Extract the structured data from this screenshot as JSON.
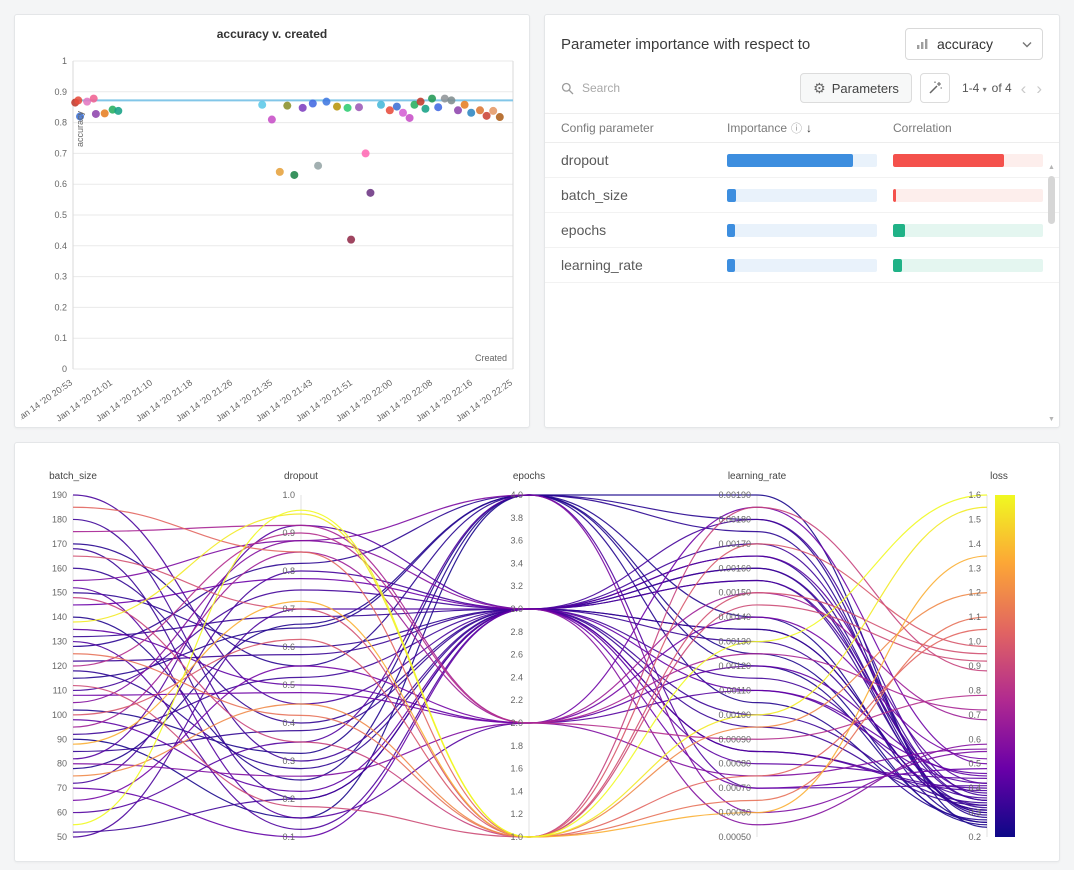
{
  "scatter_panel": {
    "title": "accuracy v. created",
    "x_axis_label": "Created",
    "y_axis_label": "accuracy",
    "chart_data": {
      "type": "scatter",
      "xlabel": "Created",
      "ylabel": "accuracy",
      "ylim": [
        0,
        1
      ],
      "y_ticks": [
        "0",
        "0.1",
        "0.2",
        "0.3",
        "0.4",
        "0.5",
        "0.6",
        "0.7",
        "0.8",
        "0.9",
        "1"
      ],
      "x_tick_labels": [
        "Jan 14 '20 20:53",
        "Jan 14 '20 21:01",
        "Jan 14 '20 21:10",
        "Jan 14 '20 21:18",
        "Jan 14 '20 21:26",
        "Jan 14 '20 21:35",
        "Jan 14 '20 21:43",
        "Jan 14 '20 21:51",
        "Jan 14 '20 22:00",
        "Jan 14 '20 22:08",
        "Jan 14 '20 22:16",
        "Jan 14 '20 22:25"
      ],
      "reference_line_y": 0.872,
      "reference_line_color": "#82c6e8",
      "points": [
        {
          "t": 0.005,
          "y": 0.865,
          "color": "#c0392b"
        },
        {
          "t": 0.012,
          "y": 0.872,
          "color": "#e74c3c"
        },
        {
          "t": 0.016,
          "y": 0.82,
          "color": "#3b6fd4"
        },
        {
          "t": 0.032,
          "y": 0.868,
          "color": "#e377c2"
        },
        {
          "t": 0.047,
          "y": 0.878,
          "color": "#f06292"
        },
        {
          "t": 0.052,
          "y": 0.828,
          "color": "#8e44ad"
        },
        {
          "t": 0.072,
          "y": 0.83,
          "color": "#e67e22"
        },
        {
          "t": 0.09,
          "y": 0.842,
          "color": "#27ae60"
        },
        {
          "t": 0.103,
          "y": 0.838,
          "color": "#16a085"
        },
        {
          "t": 0.43,
          "y": 0.858,
          "color": "#5bc8e8"
        },
        {
          "t": 0.452,
          "y": 0.81,
          "color": "#c74fc7"
        },
        {
          "t": 0.47,
          "y": 0.64,
          "color": "#e6a23c"
        },
        {
          "t": 0.487,
          "y": 0.855,
          "color": "#8a8f2a"
        },
        {
          "t": 0.503,
          "y": 0.63,
          "color": "#1e8449"
        },
        {
          "t": 0.522,
          "y": 0.848,
          "color": "#7d3fbf"
        },
        {
          "t": 0.545,
          "y": 0.862,
          "color": "#4169e1"
        },
        {
          "t": 0.557,
          "y": 0.66,
          "color": "#95a5a6"
        },
        {
          "t": 0.576,
          "y": 0.868,
          "color": "#3f78e0"
        },
        {
          "t": 0.6,
          "y": 0.852,
          "color": "#b7950b"
        },
        {
          "t": 0.624,
          "y": 0.848,
          "color": "#2ecc71"
        },
        {
          "t": 0.632,
          "y": 0.42,
          "color": "#922b4a"
        },
        {
          "t": 0.65,
          "y": 0.85,
          "color": "#9b59b6"
        },
        {
          "t": 0.665,
          "y": 0.7,
          "color": "#ff69b4"
        },
        {
          "t": 0.676,
          "y": 0.572,
          "color": "#6c3483"
        },
        {
          "t": 0.7,
          "y": 0.858,
          "color": "#45b8d8"
        },
        {
          "t": 0.72,
          "y": 0.84,
          "color": "#e74c3c"
        },
        {
          "t": 0.736,
          "y": 0.852,
          "color": "#3b6fd4"
        },
        {
          "t": 0.75,
          "y": 0.832,
          "color": "#d45fd4"
        },
        {
          "t": 0.765,
          "y": 0.815,
          "color": "#c74fc7"
        },
        {
          "t": 0.776,
          "y": 0.858,
          "color": "#27ae60"
        },
        {
          "t": 0.79,
          "y": 0.868,
          "color": "#c0392b"
        },
        {
          "t": 0.801,
          "y": 0.845,
          "color": "#16a085"
        },
        {
          "t": 0.816,
          "y": 0.878,
          "color": "#229954"
        },
        {
          "t": 0.83,
          "y": 0.85,
          "color": "#4169e1"
        },
        {
          "t": 0.845,
          "y": 0.878,
          "color": "#909497"
        },
        {
          "t": 0.86,
          "y": 0.872,
          "color": "#7f8c8d"
        },
        {
          "t": 0.875,
          "y": 0.84,
          "color": "#8e44ad"
        },
        {
          "t": 0.89,
          "y": 0.858,
          "color": "#e67e22"
        },
        {
          "t": 0.905,
          "y": 0.832,
          "color": "#2e86c1"
        },
        {
          "t": 0.925,
          "y": 0.84,
          "color": "#dc7633"
        },
        {
          "t": 0.94,
          "y": 0.822,
          "color": "#cb4335"
        },
        {
          "t": 0.955,
          "y": 0.838,
          "color": "#e59866"
        },
        {
          "t": 0.97,
          "y": 0.818,
          "color": "#af601a"
        }
      ]
    }
  },
  "importance_panel": {
    "title": "Parameter importance with respect to",
    "metric_dropdown": {
      "value": "accuracy"
    },
    "search": {
      "placeholder": "Search"
    },
    "parameters_button_label": "Parameters",
    "pagination": {
      "range": "1-4",
      "of": "of 4"
    },
    "table": {
      "columns": [
        "Config parameter",
        "Importance",
        "Correlation"
      ],
      "rows": [
        {
          "name": "dropout",
          "importance": 0.84,
          "correlation": 0.74,
          "correlation_sign": "negative"
        },
        {
          "name": "batch_size",
          "importance": 0.06,
          "correlation": 0.02,
          "correlation_sign": "negative"
        },
        {
          "name": "epochs",
          "importance": 0.05,
          "correlation": 0.08,
          "correlation_sign": "positive"
        },
        {
          "name": "learning_rate",
          "importance": 0.05,
          "correlation": 0.06,
          "correlation_sign": "positive"
        }
      ]
    },
    "colors": {
      "importance_fill": "#3d8edf",
      "importance_track": "#e9f2fb",
      "neg_fill": "#f4514c",
      "neg_track": "#fdeeec",
      "pos_fill": "#20b287",
      "pos_track": "#e4f6f0"
    }
  },
  "parallel_panel": {
    "chart_data": {
      "type": "parallel-coordinates",
      "color_by": "loss",
      "colormap": [
        "#0d0887",
        "#6a00a8",
        "#b12a90",
        "#e16462",
        "#fca636",
        "#f0f921"
      ],
      "axes": [
        {
          "name": "batch_size",
          "min": 50,
          "max": 190,
          "ticks": [
            "50",
            "60",
            "70",
            "80",
            "90",
            "100",
            "110",
            "120",
            "130",
            "140",
            "150",
            "160",
            "170",
            "180",
            "190"
          ]
        },
        {
          "name": "dropout",
          "min": 0.1,
          "max": 1.0,
          "ticks": [
            "0.1",
            "0.2",
            "0.3",
            "0.4",
            "0.5",
            "0.6",
            "0.7",
            "0.8",
            "0.9",
            "1.0"
          ]
        },
        {
          "name": "epochs",
          "min": 1.0,
          "max": 4.0,
          "ticks": [
            "1.0",
            "1.2",
            "1.4",
            "1.6",
            "1.8",
            "2.0",
            "2.2",
            "2.4",
            "2.6",
            "2.8",
            "3.0",
            "3.2",
            "3.4",
            "3.6",
            "3.8",
            "4.0"
          ]
        },
        {
          "name": "learning_rate",
          "min": 0.0005,
          "max": 0.0019,
          "ticks": [
            "0.00050",
            "0.00060",
            "0.00070",
            "0.00080",
            "0.00090",
            "0.00100",
            "0.00110",
            "0.00120",
            "0.00130",
            "0.00140",
            "0.00150",
            "0.00160",
            "0.00170",
            "0.00180",
            "0.00190"
          ]
        },
        {
          "name": "loss",
          "min": 0.2,
          "max": 1.6,
          "colorbar": true,
          "ticks": [
            "0.2",
            "0.3",
            "0.4",
            "0.5",
            "0.6",
            "0.7",
            "0.8",
            "0.9",
            "1.0",
            "1.1",
            "1.2",
            "1.3",
            "1.4",
            "1.5",
            "1.6"
          ]
        }
      ],
      "runs": [
        [
          190,
          0.45,
          3,
          0.00155,
          0.38
        ],
        [
          185,
          0.85,
          1,
          0.00075,
          1.05
        ],
        [
          180,
          0.3,
          3,
          0.0017,
          0.35
        ],
        [
          175,
          0.92,
          2,
          0.00125,
          0.72
        ],
        [
          170,
          0.55,
          4,
          0.0018,
          0.28
        ],
        [
          168,
          0.2,
          3,
          0.00095,
          0.33
        ],
        [
          165,
          0.7,
          1,
          0.0015,
          0.95
        ],
        [
          160,
          0.4,
          3,
          0.00135,
          0.31
        ],
        [
          155,
          0.88,
          4,
          0.0006,
          0.55
        ],
        [
          152,
          0.15,
          2,
          0.0011,
          0.42
        ],
        [
          150,
          0.6,
          3,
          0.00165,
          0.3
        ],
        [
          148,
          0.35,
          1,
          0.00185,
          0.88
        ],
        [
          145,
          0.78,
          3,
          0.0007,
          0.48
        ],
        [
          140,
          0.25,
          4,
          0.0014,
          0.26
        ],
        [
          138,
          0.95,
          1,
          0.001,
          1.55
        ],
        [
          135,
          0.5,
          2,
          0.0012,
          0.45
        ],
        [
          132,
          0.68,
          3,
          0.00155,
          0.32
        ],
        [
          130,
          0.12,
          3,
          0.00085,
          0.4
        ],
        [
          128,
          0.82,
          4,
          0.00175,
          0.29
        ],
        [
          125,
          0.42,
          1,
          0.00065,
          1.1
        ],
        [
          122,
          0.58,
          3,
          0.0013,
          0.33
        ],
        [
          120,
          0.9,
          2,
          0.0009,
          0.78
        ],
        [
          118,
          0.28,
          3,
          0.0016,
          0.3
        ],
        [
          115,
          0.65,
          4,
          0.00105,
          0.27
        ],
        [
          112,
          0.18,
          1,
          0.00145,
          0.92
        ],
        [
          110,
          0.75,
          3,
          0.00115,
          0.36
        ],
        [
          108,
          0.48,
          2,
          0.00185,
          0.5
        ],
        [
          105,
          0.88,
          3,
          0.00055,
          0.58
        ],
        [
          102,
          0.32,
          4,
          0.00125,
          0.25
        ],
        [
          100,
          0.62,
          1,
          0.0017,
          0.98
        ],
        [
          98,
          0.22,
          3,
          0.0008,
          0.44
        ],
        [
          95,
          0.85,
          2,
          0.0015,
          0.68
        ],
        [
          92,
          0.52,
          3,
          0.001,
          0.34
        ],
        [
          90,
          0.15,
          4,
          0.0019,
          0.24
        ],
        [
          88,
          0.72,
          1,
          0.0006,
          1.35
        ],
        [
          85,
          0.38,
          3,
          0.00135,
          0.31
        ],
        [
          82,
          0.92,
          3,
          0.00165,
          0.42
        ],
        [
          80,
          0.26,
          2,
          0.00075,
          0.56
        ],
        [
          78,
          0.66,
          4,
          0.0012,
          0.26
        ],
        [
          75,
          0.45,
          1,
          0.00095,
          1.2
        ],
        [
          72,
          0.8,
          3,
          0.0018,
          0.37
        ],
        [
          70,
          0.1,
          3,
          0.0011,
          0.46
        ],
        [
          65,
          0.55,
          2,
          0.0014,
          0.52
        ],
        [
          60,
          0.35,
          4,
          0.0007,
          0.41
        ],
        [
          55,
          0.96,
          1,
          0.0013,
          1.6
        ],
        [
          52,
          0.2,
          3,
          0.0016,
          0.35
        ],
        [
          50,
          0.7,
          3,
          0.00085,
          0.39
        ]
      ]
    }
  }
}
